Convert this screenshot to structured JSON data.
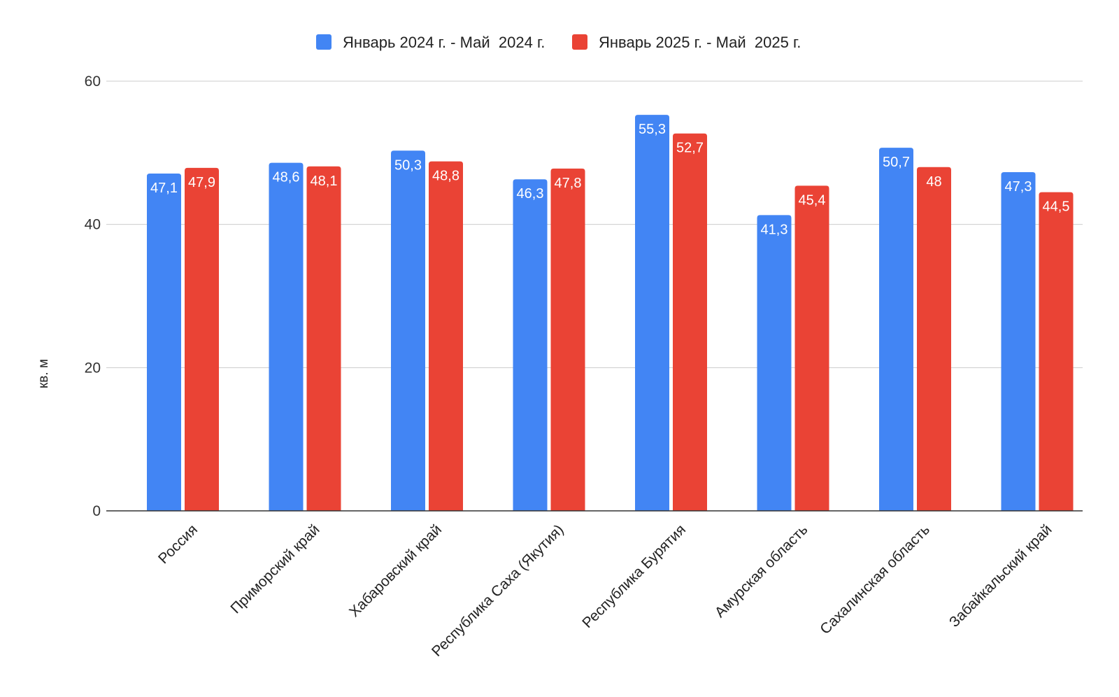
{
  "chart_data": {
    "type": "bar",
    "title": "",
    "xlabel": "",
    "ylabel": "кв. м",
    "ylim": [
      0,
      60
    ],
    "yticks": [
      0,
      20,
      40,
      60
    ],
    "grid": true,
    "legend_position": "top",
    "categories": [
      "Россия",
      "Приморский край",
      "Хабаровский край",
      "Республика Саха (Якутия)",
      "Республика Бурятия",
      "Амурская область",
      "Сахалинская область",
      "Забайкальский край"
    ],
    "series": [
      {
        "name": "Январь 2024 г. - Май  2024 г.",
        "color": "#4285f4",
        "values": [
          47.1,
          48.6,
          50.3,
          46.3,
          55.3,
          41.3,
          50.7,
          47.3
        ],
        "labels": [
          "47,1",
          "48,6",
          "50,3",
          "46,3",
          "55,3",
          "41,3",
          "50,7",
          "47,3"
        ]
      },
      {
        "name": "Январь 2025 г. - Май  2025 г.",
        "color": "#ea4335",
        "values": [
          47.9,
          48.1,
          48.8,
          47.8,
          52.7,
          45.4,
          48,
          44.5
        ],
        "labels": [
          "47,9",
          "48,1",
          "48,8",
          "47,8",
          "52,7",
          "45,4",
          "48",
          "44,5"
        ]
      }
    ]
  }
}
